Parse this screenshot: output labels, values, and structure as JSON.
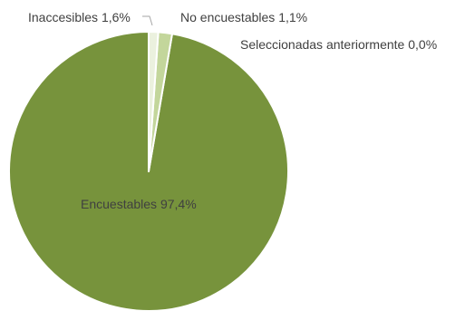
{
  "chart_data": {
    "type": "pie",
    "slices": [
      {
        "label": "Encuestables",
        "value_text": "97,4%",
        "value": 97.4,
        "color": "#77933c"
      },
      {
        "label": "Inaccesibles",
        "value_text": "1,6%",
        "value": 1.6,
        "color": "#c3d69b"
      },
      {
        "label": "No encuestables",
        "value_text": "1,1%",
        "value": 1.1,
        "color": "#ebf1de"
      },
      {
        "label": "Seleccionadas anteriormente",
        "value_text": "0,0%",
        "value": 0.0,
        "color": "#ffffff"
      }
    ],
    "start_angle_deg": 0,
    "direction": "counterclockwise",
    "slice_border_color": "#ffffff",
    "label_color": "#404040"
  }
}
